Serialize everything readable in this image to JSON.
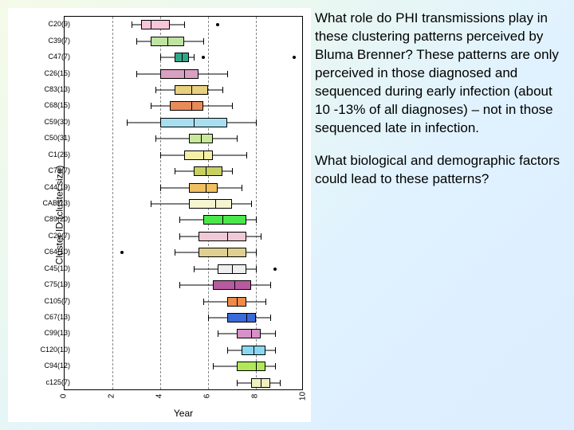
{
  "chart": {
    "type": "boxplot",
    "ylabel": "Cluster ID (cluster size)",
    "xlabel": "Year",
    "xlim": [
      0,
      10
    ],
    "xticks": [
      0,
      2,
      4,
      6,
      8,
      10
    ],
    "grid_color": "#888888",
    "background_color": "#ffffff",
    "label_fontsize": 12,
    "tick_fontsize": 9,
    "categories": [
      "C20(9)",
      "C39(7)",
      "C47(7)",
      "C26(15)",
      "C83(13)",
      "C68(15)",
      "C59(30)",
      "C50(31)",
      "C1(26)",
      "C79(7)",
      "C44(19)",
      "CAB(13)",
      "C89(20)",
      "C29(7)",
      "C64(10)",
      "C45(10)",
      "C75(19)",
      "C105(7)",
      "C67(13)",
      "C99(13)",
      "C120(10)",
      "C94(12)",
      "c125(7)"
    ],
    "series": [
      {
        "q1": 3.2,
        "med": 3.6,
        "q3": 4.4,
        "lo": 2.8,
        "hi": 5.0,
        "out": [
          6.4
        ],
        "color": "#f7c6d9"
      },
      {
        "q1": 3.6,
        "med": 4.3,
        "q3": 5.0,
        "lo": 3.0,
        "hi": 5.8,
        "out": [],
        "color": "#bfe3a0"
      },
      {
        "q1": 4.6,
        "med": 4.9,
        "q3": 5.2,
        "lo": 4.0,
        "hi": 5.4,
        "out": [
          5.8,
          9.6
        ],
        "color": "#2fa88a"
      },
      {
        "q1": 4.0,
        "med": 5.0,
        "q3": 5.6,
        "lo": 3.0,
        "hi": 6.8,
        "out": [],
        "color": "#d9a0c0"
      },
      {
        "q1": 4.6,
        "med": 5.3,
        "q3": 6.0,
        "lo": 3.8,
        "hi": 6.6,
        "out": [],
        "color": "#e8d080"
      },
      {
        "q1": 4.4,
        "med": 5.3,
        "q3": 5.8,
        "lo": 3.6,
        "hi": 7.0,
        "out": [],
        "color": "#e88a5a"
      },
      {
        "q1": 4.0,
        "med": 5.4,
        "q3": 6.8,
        "lo": 2.6,
        "hi": 8.0,
        "out": [],
        "color": "#a8dff0"
      },
      {
        "q1": 5.2,
        "med": 5.7,
        "q3": 6.2,
        "lo": 3.8,
        "hi": 7.2,
        "out": [],
        "color": "#c8e89a"
      },
      {
        "q1": 5.0,
        "med": 5.8,
        "q3": 6.2,
        "lo": 4.0,
        "hi": 7.6,
        "out": [],
        "color": "#f5f0a8"
      },
      {
        "q1": 5.4,
        "med": 5.9,
        "q3": 6.6,
        "lo": 4.6,
        "hi": 7.0,
        "out": [],
        "color": "#c8d060"
      },
      {
        "q1": 5.2,
        "med": 5.9,
        "q3": 6.4,
        "lo": 4.0,
        "hi": 7.4,
        "out": [],
        "color": "#f0c060"
      },
      {
        "q1": 5.2,
        "med": 6.3,
        "q3": 7.0,
        "lo": 3.6,
        "hi": 7.8,
        "out": [],
        "color": "#f5f5d0"
      },
      {
        "q1": 5.8,
        "med": 6.6,
        "q3": 7.6,
        "lo": 4.8,
        "hi": 8.0,
        "out": [],
        "color": "#4ae84a"
      },
      {
        "q1": 5.6,
        "med": 6.8,
        "q3": 7.6,
        "lo": 4.8,
        "hi": 8.2,
        "out": [],
        "color": "#f0c8d8"
      },
      {
        "q1": 5.6,
        "med": 6.8,
        "q3": 7.6,
        "lo": 4.6,
        "hi": 8.0,
        "out": [
          2.4
        ],
        "color": "#e0d090"
      },
      {
        "q1": 6.4,
        "med": 7.0,
        "q3": 7.6,
        "lo": 5.4,
        "hi": 8.0,
        "out": [
          8.8
        ],
        "color": "#efefef"
      },
      {
        "q1": 6.2,
        "med": 7.1,
        "q3": 7.8,
        "lo": 4.8,
        "hi": 8.6,
        "out": [],
        "color": "#b85aa0"
      },
      {
        "q1": 6.8,
        "med": 7.2,
        "q3": 7.6,
        "lo": 5.8,
        "hi": 8.4,
        "out": [],
        "color": "#f08a4a"
      },
      {
        "q1": 6.8,
        "med": 7.6,
        "q3": 8.0,
        "lo": 6.0,
        "hi": 8.6,
        "out": [],
        "color": "#3a6ad8"
      },
      {
        "q1": 7.2,
        "med": 7.8,
        "q3": 8.2,
        "lo": 6.4,
        "hi": 8.8,
        "out": [],
        "color": "#d890c8"
      },
      {
        "q1": 7.4,
        "med": 7.9,
        "q3": 8.4,
        "lo": 6.8,
        "hi": 8.8,
        "out": [],
        "color": "#8ad8f0"
      },
      {
        "q1": 7.2,
        "med": 8.0,
        "q3": 8.4,
        "lo": 6.2,
        "hi": 8.8,
        "out": [],
        "color": "#b0e85a"
      },
      {
        "q1": 7.8,
        "med": 8.2,
        "q3": 8.6,
        "lo": 7.2,
        "hi": 9.0,
        "out": [],
        "color": "#f0f0c0"
      }
    ]
  },
  "text": {
    "p1": "What role do PHI transmissions play in these clustering patterns perceived by Bluma Brenner?  These patterns are only perceived in those diagnosed and sequenced during early infection (about 10 -13% of all diagnoses) – not in those sequenced late in infection.",
    "p2": "What biological and demographic factors could lead to these patterns?"
  }
}
